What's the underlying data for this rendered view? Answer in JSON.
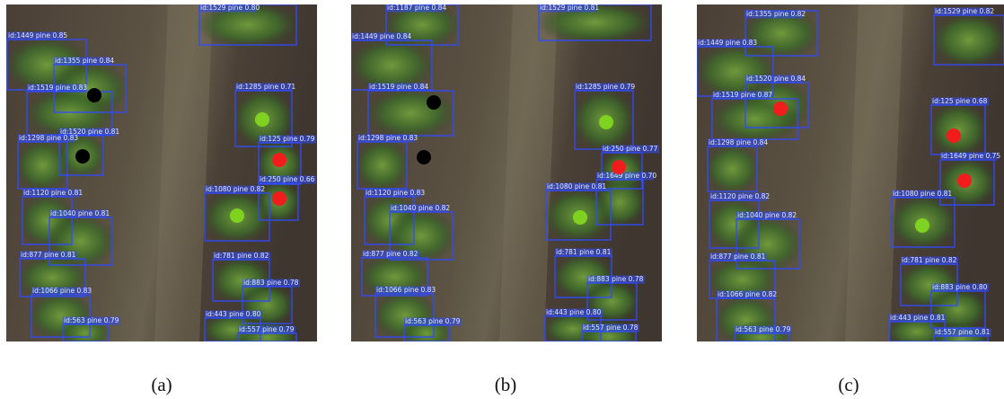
{
  "panels": [
    {
      "caption": "(a)",
      "detections": [
        "id:1449 pine 0.85",
        "id:1529 pine 0.80",
        "id:1355 pine 0.84",
        "id:1519 pine 0.83",
        "id:1285 pine 0.71",
        "id:1520 pine 0.81",
        "id:1298 pine 0.83",
        "id:125 pine 0.79",
        "id:250 pine 0.66",
        "id:1080 pine 0.82",
        "id:1120 pine 0.81",
        "id:1040 pine 0.81",
        "id:877 pine 0.81",
        "id:781 pine 0.82",
        "id:883 pine 0.78",
        "id:1066 pine 0.83",
        "id:443 pine 0.80",
        "id:563 pine 0.79",
        "id:557 pine 0.79"
      ]
    },
    {
      "caption": "(b)",
      "detections": [
        "id:1187 pine 0.84",
        "id:1529 pine 0.81",
        "id:1449 pine 0.84",
        "id:1519 pine 0.84",
        "id:1285 pine 0.79",
        "id:1298 pine 0.83",
        "id:250 pine 0.77",
        "id:1649 pine 0.70",
        "id:1080 pine 0.81",
        "id:1120 pine 0.83",
        "id:1040 pine 0.82",
        "id:877 pine 0.82",
        "id:781 pine 0.81",
        "id:883 pine 0.78",
        "id:1066 pine 0.83",
        "id:443 pine 0.80",
        "id:563 pine 0.79",
        "id:557 pine 0.78"
      ]
    },
    {
      "caption": "(c)",
      "detections": [
        "id:1355 pine 0.82",
        "id:1529 pine 0.82",
        "id:1449 pine 0.83",
        "id:1520 pine 0.84",
        "id:1519 pine 0.87",
        "id:125 pine 0.68",
        "id:1298 pine 0.84",
        "id:1649 pine 0.75",
        "id:1120 pine 0.82",
        "id:1080 pine 0.81",
        "id:1040 pine 0.82",
        "id:877 pine 0.81",
        "id:781 pine 0.82",
        "id:1066 pine 0.82",
        "id:883 pine 0.80",
        "id:443 pine 0.81",
        "id:563 pine 0.79",
        "id:557 pine 0.81"
      ]
    }
  ]
}
